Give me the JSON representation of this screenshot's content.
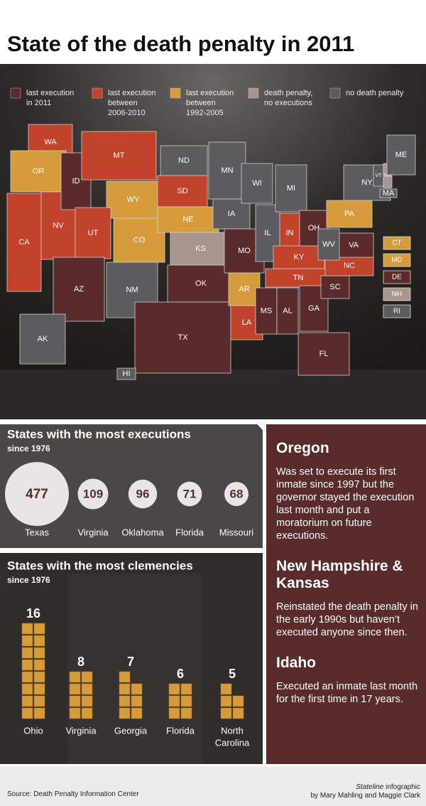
{
  "title": "State of the death penalty in 2011",
  "legend": [
    {
      "lines": [
        "last execution",
        "in 2011"
      ],
      "color": "#5b2a2b"
    },
    {
      "lines": [
        "last execution",
        "between",
        "2006-2010"
      ],
      "color": "#c2432c"
    },
    {
      "lines": [
        "last execution",
        "between",
        "1992-2005"
      ],
      "color": "#d69c3b"
    },
    {
      "lines": [
        "death penalty,",
        "no executions"
      ],
      "color": "#a8968e"
    },
    {
      "lines": [
        "no death penalty"
      ],
      "color": "#5c5b5d"
    }
  ],
  "map": {
    "states": [
      {
        "label": "WA",
        "category": 1
      },
      {
        "label": "OR",
        "category": 2
      },
      {
        "label": "CA",
        "category": 1
      },
      {
        "label": "NV",
        "category": 1
      },
      {
        "label": "ID",
        "category": 0
      },
      {
        "label": "MT",
        "category": 1
      },
      {
        "label": "WY",
        "category": 2
      },
      {
        "label": "UT",
        "category": 1
      },
      {
        "label": "AZ",
        "category": 0
      },
      {
        "label": "CO",
        "category": 2
      },
      {
        "label": "NM",
        "category": 4
      },
      {
        "label": "ND",
        "category": 4
      },
      {
        "label": "SD",
        "category": 1
      },
      {
        "label": "NE",
        "category": 2
      },
      {
        "label": "KS",
        "category": 3
      },
      {
        "label": "OK",
        "category": 0
      },
      {
        "label": "TX",
        "category": 0
      },
      {
        "label": "MN",
        "category": 4
      },
      {
        "label": "IA",
        "category": 4
      },
      {
        "label": "MO",
        "category": 0
      },
      {
        "label": "AR",
        "category": 2
      },
      {
        "label": "LA",
        "category": 1
      },
      {
        "label": "WI",
        "category": 4
      },
      {
        "label": "IL",
        "category": 4
      },
      {
        "label": "MI",
        "category": 4
      },
      {
        "label": "IN",
        "category": 1
      },
      {
        "label": "OH",
        "category": 0
      },
      {
        "label": "KY",
        "category": 1
      },
      {
        "label": "TN",
        "category": 1
      },
      {
        "label": "MS",
        "category": 0
      },
      {
        "label": "AL",
        "category": 0
      },
      {
        "label": "GA",
        "category": 0
      },
      {
        "label": "FL",
        "category": 0
      },
      {
        "label": "SC",
        "category": 0
      },
      {
        "label": "NC",
        "category": 1
      },
      {
        "label": "VA",
        "category": 0
      },
      {
        "label": "WV",
        "category": 4
      },
      {
        "label": "PA",
        "category": 2
      },
      {
        "label": "NY",
        "category": 4
      },
      {
        "label": "VT",
        "category": 4
      },
      {
        "label": "NH",
        "category": 3
      },
      {
        "label": "ME",
        "category": 4
      },
      {
        "label": "MA",
        "category": 4
      },
      {
        "label": "AK",
        "category": 4
      },
      {
        "label": "HI",
        "category": 4
      }
    ],
    "callouts": [
      {
        "label": "CT",
        "category": 2
      },
      {
        "label": "MD",
        "category": 2
      },
      {
        "label": "DE",
        "category": 0
      },
      {
        "label": "NH",
        "category": 3
      },
      {
        "label": "RI",
        "category": 4
      }
    ]
  },
  "executions": {
    "title": "States with the most executions",
    "subtitle": "since 1976",
    "items": [
      {
        "state": "Texas",
        "value": 477
      },
      {
        "state": "Virginia",
        "value": 109
      },
      {
        "state": "Oklahoma",
        "value": 96
      },
      {
        "state": "Florida",
        "value": 71
      },
      {
        "state": "Missouri",
        "value": 68
      }
    ]
  },
  "clemencies": {
    "title": "States with the most clemencies",
    "subtitle": "since 1976",
    "items": [
      {
        "state": [
          "Ohio"
        ],
        "value": 16
      },
      {
        "state": [
          "Virginia"
        ],
        "value": 8
      },
      {
        "state": [
          "Georgia"
        ],
        "value": 7
      },
      {
        "state": [
          "Florida"
        ],
        "value": 6
      },
      {
        "state": [
          "North",
          "Carolina"
        ],
        "value": 5
      }
    ]
  },
  "notes": [
    {
      "heading": "Oregon",
      "text": "Was set to execute its first inmate since 1997 but the governor stayed the execution last month and put a moratorium on future executions."
    },
    {
      "heading": "New Hampshire & Kansas",
      "text": "Reinstated the death penalty in the early 1990s but haven’t executed anyone since then."
    },
    {
      "heading": "Idaho",
      "text": "Executed an inmate last month for the first time in 17 years."
    }
  ],
  "footer": {
    "source": "Source: Death Penalty Information Center",
    "credit_publication": "Stateline",
    "credit_kind": "infographic",
    "credit_authors": "by Mary Mahling and Maggie Clark"
  }
}
